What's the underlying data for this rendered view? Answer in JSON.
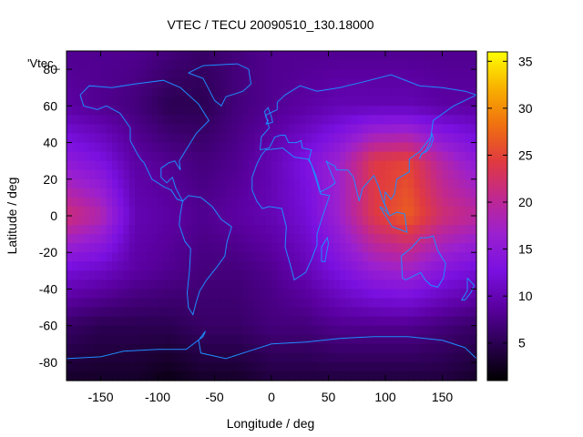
{
  "chart_data": {
    "type": "heatmap",
    "title": "VTEC / TECU 20090510_130.18000",
    "xlabel": "Longitude / deg",
    "ylabel": "Latitude / deg",
    "legend_entry": "'Vtec_",
    "xlim": [
      -180,
      180
    ],
    "ylim": [
      -90,
      90
    ],
    "x_ticks": [
      -150,
      -100,
      -50,
      0,
      50,
      100,
      150
    ],
    "y_ticks": [
      -80,
      -60,
      -40,
      -20,
      0,
      20,
      40,
      60,
      80
    ],
    "colorbar": {
      "range": [
        1,
        36
      ],
      "ticks": [
        5,
        10,
        15,
        20,
        25,
        30,
        35
      ],
      "palette": [
        "#000000",
        "#2a0050",
        "#5a00a0",
        "#7a10e0",
        "#9a20d0",
        "#c02890",
        "#e03a40",
        "#f07010",
        "#f8b000",
        "#ffff00"
      ]
    },
    "grid": false,
    "coastline_color": "#1e8cff",
    "field_samples": {
      "lon": [
        -180,
        -150,
        -120,
        -90,
        -60,
        -30,
        0,
        30,
        60,
        90,
        120,
        150,
        180
      ],
      "lat": [
        90,
        60,
        30,
        0,
        -30,
        -60,
        -90
      ],
      "vtec": [
        [
          8,
          8,
          8,
          7,
          6,
          7,
          8,
          8,
          8,
          8,
          8,
          8,
          8
        ],
        [
          9,
          8,
          7,
          5,
          5,
          7,
          8,
          9,
          10,
          10,
          10,
          9,
          9
        ],
        [
          15,
          13,
          9,
          8,
          7,
          8,
          10,
          13,
          17,
          24,
          25,
          19,
          15
        ],
        [
          22,
          19,
          10,
          9,
          8,
          9,
          10,
          12,
          17,
          24,
          27,
          22,
          20
        ],
        [
          12,
          11,
          9,
          8,
          7,
          7,
          8,
          10,
          13,
          16,
          17,
          14,
          12
        ],
        [
          6,
          5,
          5,
          5,
          6,
          6,
          7,
          7,
          8,
          8,
          8,
          7,
          6
        ],
        [
          3,
          3,
          3,
          2,
          3,
          3,
          4,
          4,
          4,
          4,
          4,
          4,
          3
        ]
      ]
    }
  }
}
